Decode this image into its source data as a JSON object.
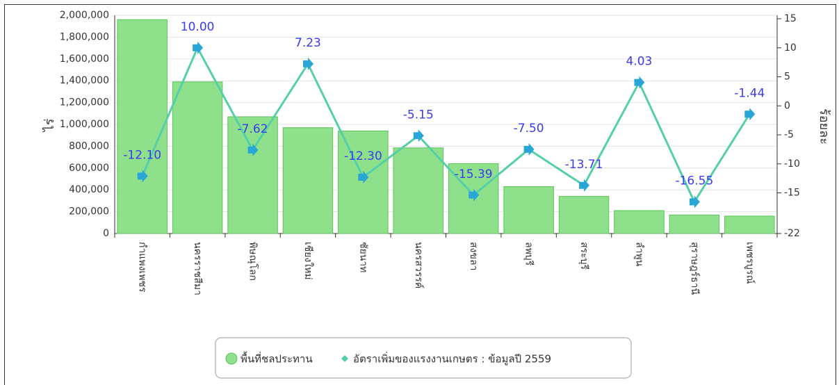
{
  "chart_data": {
    "type": "bar_line",
    "y_label": "ไร่",
    "y2_label": "ร้อยละ",
    "categories": [
      "กำแพงเพชร",
      "นครราชสีมา",
      "พิษณุโลก",
      "เชียงใหม่",
      "ชัยนาท",
      "นครสวรรค์",
      "สงขลา",
      "ลพบุรี",
      "สระบุรี",
      "ลำพูน",
      "สุราษฎร์ธานี",
      "เพชรบูรณ์"
    ],
    "series": [
      {
        "name": "พื้นที่ชลประทาน",
        "type": "bar",
        "color": "#8ee08a",
        "values": [
          1960000,
          1390000,
          1070000,
          970000,
          940000,
          785000,
          640000,
          430000,
          340000,
          210000,
          170000,
          160000
        ]
      },
      {
        "name": "อัตราเพิ่มของแรงงานเกษตร : ข้อมูลปี 2559",
        "type": "line",
        "axis": "y2",
        "color": "#55cfa8",
        "marker_color": "#2aa6d6",
        "values": [
          -12.1,
          10,
          -7.62,
          7.23,
          -12.3,
          -5.15,
          -15.39,
          -7.5,
          -13.71,
          4.03,
          -16.55,
          -1.44
        ],
        "value_labels": [
          "-12.10",
          "10.00",
          "-7.62",
          "7.23",
          "-12.30",
          "-5.15",
          "-15.39",
          "-7.50",
          "-13.71",
          "4.03",
          "-16.55",
          "-1.44"
        ]
      }
    ],
    "ylim": [
      0,
      2000000
    ],
    "yticks": [
      0,
      {
        "value": 200000,
        "label": "200,000"
      },
      {
        "value": 400000,
        "label": "400,000"
      },
      {
        "value": 600000,
        "label": "600,000"
      },
      {
        "value": 800000,
        "label": "800,000"
      },
      {
        "value": 1000000,
        "label": "1,000,000"
      },
      {
        "value": 1200000,
        "label": "1,200,000"
      },
      {
        "value": 1400000,
        "label": "1,400,000"
      },
      {
        "value": 1600000,
        "label": "1,600,000"
      },
      {
        "value": 1800000,
        "label": "1,800,000"
      },
      {
        "value": 2000000,
        "label": "2,000,000"
      }
    ],
    "y2lim": [
      -22,
      15.6
    ],
    "y2ticks": [
      -22,
      -15,
      -10,
      -5,
      0,
      5,
      10,
      15
    ],
    "grid": true,
    "legend": "bottom"
  }
}
